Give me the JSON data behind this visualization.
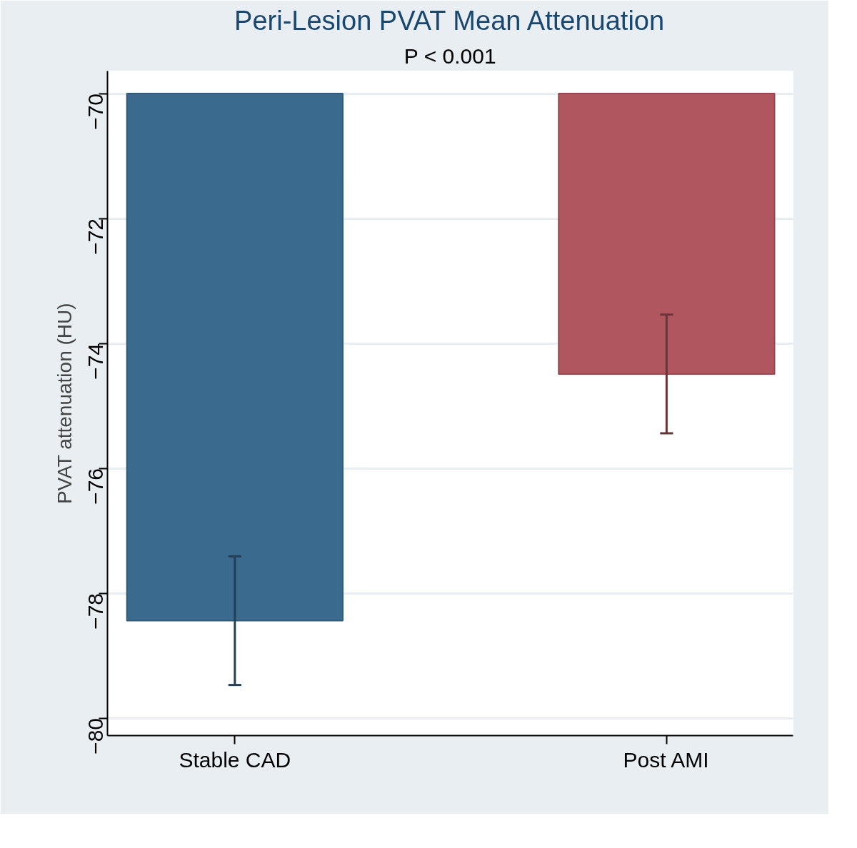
{
  "chart_data": {
    "type": "bar",
    "title": "Peri-Lesion PVAT Mean Attenuation",
    "subtitle": "P < 0.001",
    "ylabel": "PVAT attenuation (HU)",
    "categories": [
      "Stable CAD",
      "Post AMI"
    ],
    "base": [
      -70,
      -70
    ],
    "values": [
      -8.44,
      -4.49
    ],
    "errors": [
      1.03,
      0.95
    ],
    "colors": [
      "#3b6a8f",
      "#b0565e"
    ],
    "ylim": [
      -80.28,
      -69.64
    ],
    "yticks": [
      -80,
      -78,
      -76,
      -74,
      -72,
      -70
    ],
    "grid": "y"
  }
}
